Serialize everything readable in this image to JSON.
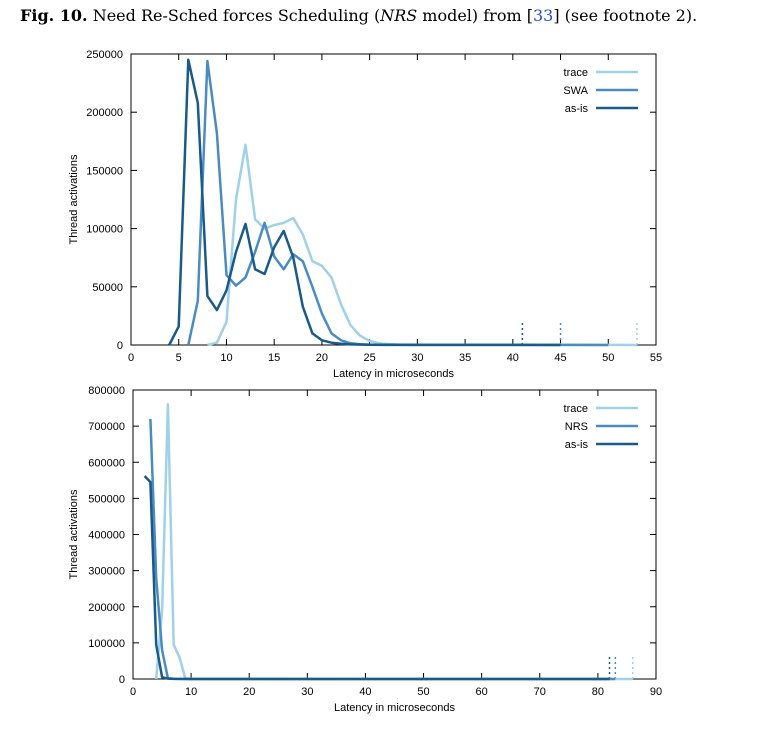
{
  "caption": {
    "fig": "Fig. 10.",
    "text_before": " Need Re-Sched forces Scheduling (",
    "model": "NRS",
    "text_mid": " model) from [",
    "ref": "33",
    "text_after": "] (see footnote 2)."
  },
  "chart_data": [
    {
      "type": "line",
      "title": "",
      "xlabel": "Latency in microseconds",
      "ylabel": "Thread activations",
      "xlim": [
        0,
        55
      ],
      "ylim": [
        0,
        250000
      ],
      "xticks": [
        0,
        5,
        10,
        15,
        20,
        25,
        30,
        35,
        40,
        45,
        50,
        55
      ],
      "yticks": [
        0,
        50000,
        100000,
        150000,
        200000,
        250000
      ],
      "legend_position": "top-right",
      "grid": false,
      "series": [
        {
          "name": "trace",
          "color": "#9fd1ea",
          "x": [
            8,
            9,
            10,
            11,
            12,
            13,
            14,
            15,
            16,
            17,
            18,
            19,
            20,
            21,
            22,
            23,
            24,
            25,
            26,
            27,
            28,
            30,
            35,
            40,
            45,
            50,
            53
          ],
          "y": [
            0,
            2000,
            20000,
            125000,
            172000,
            108000,
            100000,
            103000,
            105000,
            109000,
            95000,
            72000,
            68000,
            58000,
            35000,
            17000,
            8000,
            3500,
            1500,
            800,
            400,
            200,
            100,
            100,
            100,
            50,
            0
          ]
        },
        {
          "name": "SWA",
          "color": "#4a8cc2",
          "x": [
            6,
            7,
            8,
            9,
            10,
            11,
            12,
            13,
            14,
            15,
            16,
            17,
            18,
            19,
            20,
            21,
            22,
            23,
            24,
            25,
            30,
            35,
            40,
            45,
            50
          ],
          "y": [
            0,
            38000,
            244000,
            182000,
            60000,
            51000,
            58000,
            80000,
            105000,
            76000,
            65000,
            78000,
            72000,
            50000,
            27000,
            10000,
            4000,
            1500,
            700,
            300,
            100,
            100,
            50,
            50,
            0
          ]
        },
        {
          "name": "as-is",
          "color": "#1a5a8a",
          "x": [
            4,
            5,
            6,
            7,
            8,
            9,
            10,
            11,
            12,
            13,
            14,
            15,
            16,
            17,
            18,
            19,
            20,
            21,
            22,
            23,
            25,
            30,
            35,
            40,
            45
          ],
          "y": [
            0,
            16000,
            245000,
            208000,
            42000,
            30000,
            47000,
            80000,
            104000,
            65000,
            61000,
            84000,
            98000,
            75000,
            33000,
            10000,
            4000,
            2000,
            1000,
            500,
            200,
            100,
            50,
            50,
            0
          ]
        }
      ],
      "tail_markers_x": [
        41,
        45,
        53
      ]
    },
    {
      "type": "line",
      "title": "",
      "xlabel": "Latency in microseconds",
      "ylabel": "Thread activations",
      "xlim": [
        0,
        90
      ],
      "ylim": [
        0,
        800000
      ],
      "xticks": [
        0,
        10,
        20,
        30,
        40,
        50,
        60,
        70,
        80,
        90
      ],
      "yticks": [
        0,
        100000,
        200000,
        300000,
        400000,
        500000,
        600000,
        700000,
        800000
      ],
      "legend_position": "top-right",
      "grid": false,
      "series": [
        {
          "name": "trace",
          "color": "#9fd1ea",
          "x": [
            4,
            5,
            6,
            7,
            8,
            9,
            10,
            20,
            40,
            60,
            80,
            86
          ],
          "y": [
            0,
            190000,
            760000,
            95000,
            60000,
            2000,
            500,
            200,
            100,
            100,
            50,
            0
          ]
        },
        {
          "name": "NRS",
          "color": "#4a8cc2",
          "x": [
            3,
            4,
            5,
            6,
            7,
            8,
            10,
            20,
            40,
            60,
            80,
            83
          ],
          "y": [
            720000,
            280000,
            80000,
            2000,
            500,
            200,
            100,
            100,
            50,
            50,
            50,
            0
          ]
        },
        {
          "name": "as-is",
          "color": "#1a5a8a",
          "x": [
            2,
            3,
            4,
            5,
            6,
            7,
            10,
            20,
            40,
            60,
            80,
            82
          ],
          "y": [
            562000,
            545000,
            95000,
            5000,
            1000,
            200,
            100,
            100,
            50,
            50,
            50,
            0
          ]
        }
      ],
      "tail_markers_x": [
        82,
        83,
        86
      ]
    }
  ]
}
